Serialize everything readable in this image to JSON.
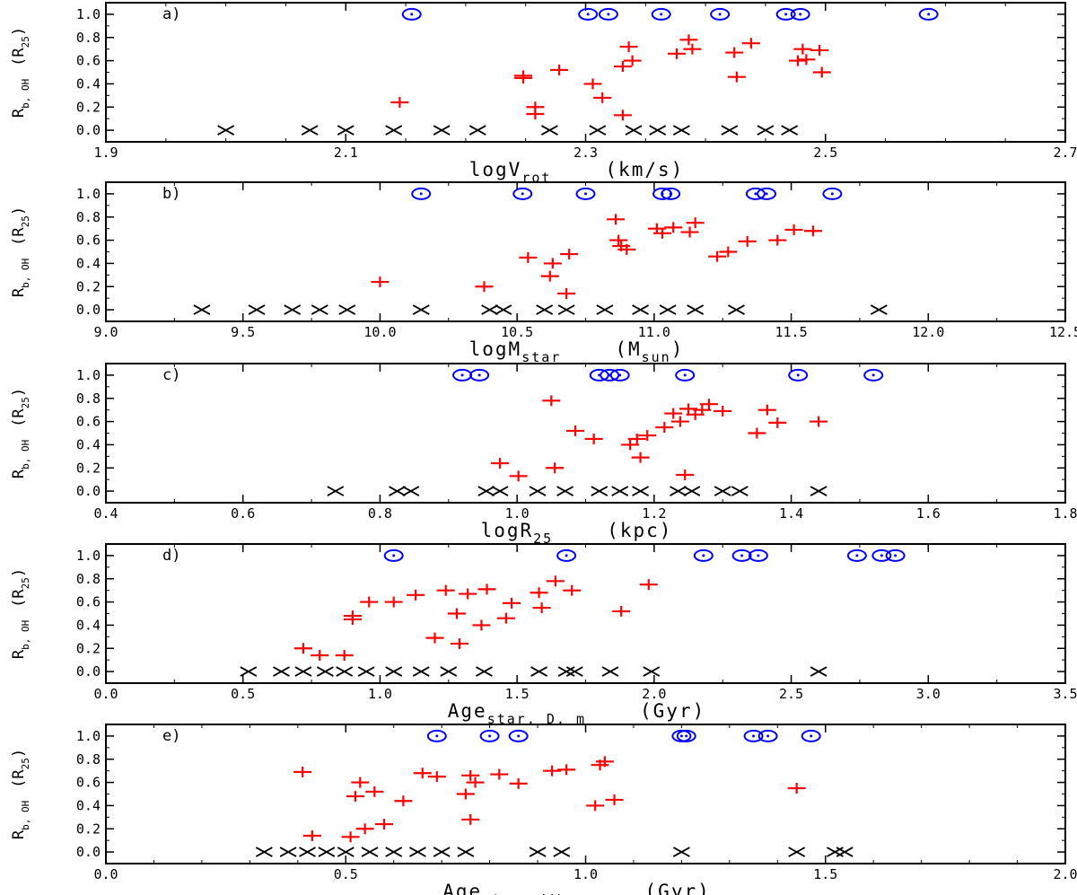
{
  "figure": {
    "y_label_main": "R",
    "y_label_sub": "b, OH",
    "y_label_unit_pre": "(R",
    "y_label_unit_sub": "25",
    "y_label_unit_post": ")"
  },
  "colors": {
    "upper": "#0000ff",
    "measured": "#ff0000",
    "none": "#000000"
  },
  "chart_data": [
    {
      "type": "scatter",
      "panel_label": "a)",
      "xlabel": {
        "main": "logV",
        "sub": "rot",
        "unit": "(km/s)"
      },
      "xlim": [
        1.9,
        2.7
      ],
      "xticks": [
        1.9,
        2.1,
        2.3,
        2.5,
        2.7
      ],
      "xtick_labels": [
        "1.9",
        "2.1",
        "2.3",
        "2.5",
        "2.7"
      ],
      "xminor": 0.05,
      "ylim": [
        -0.1,
        1.1
      ],
      "yticks": [
        0.0,
        0.2,
        0.4,
        0.6,
        0.8,
        1.0
      ],
      "ytick_labels": [
        "0.0",
        "0.2",
        "0.4",
        "0.6",
        "0.8",
        "1.0"
      ],
      "series": [
        {
          "name": "upper",
          "marker": "circle-dot",
          "x": [
            2.155,
            2.302,
            2.319,
            2.363,
            2.412,
            2.467,
            2.479,
            2.586
          ],
          "y": [
            1.0,
            1.0,
            1.0,
            1.0,
            1.0,
            1.0,
            1.0,
            1.0
          ]
        },
        {
          "name": "measured",
          "marker": "plus",
          "x": [
            2.145,
            2.248,
            2.248,
            2.258,
            2.258,
            2.278,
            2.306,
            2.314,
            2.331,
            2.331,
            2.336,
            2.339,
            2.376,
            2.386,
            2.389,
            2.424,
            2.426,
            2.438,
            2.477,
            2.481,
            2.484,
            2.495,
            2.497
          ],
          "y": [
            0.24,
            0.47,
            0.45,
            0.2,
            0.14,
            0.52,
            0.4,
            0.28,
            0.55,
            0.13,
            0.72,
            0.6,
            0.66,
            0.78,
            0.7,
            0.67,
            0.46,
            0.75,
            0.6,
            0.7,
            0.61,
            0.69,
            0.5
          ]
        },
        {
          "name": "none",
          "marker": "x",
          "x": [
            2.0,
            2.07,
            2.1,
            2.14,
            2.18,
            2.21,
            2.27,
            2.31,
            2.34,
            2.36,
            2.38,
            2.42,
            2.45,
            2.47
          ],
          "y": [
            0,
            0,
            0,
            0,
            0,
            0,
            0,
            0,
            0,
            0,
            0,
            0,
            0,
            0
          ]
        }
      ]
    },
    {
      "type": "scatter",
      "panel_label": "b)",
      "xlabel": {
        "main": "logM",
        "sub": "star",
        "unit": "(M",
        "unit_sub": "sun",
        "unit_post": ")"
      },
      "xlim": [
        9.0,
        12.5
      ],
      "xticks": [
        9.0,
        9.5,
        10.0,
        10.5,
        11.0,
        11.5,
        12.0,
        12.5
      ],
      "xtick_labels": [
        "9.0",
        "9.5",
        "10.0",
        "10.5",
        "11.0",
        "11.5",
        "12.0",
        "12.5"
      ],
      "xminor": 0.25,
      "ylim": [
        -0.1,
        1.1
      ],
      "yticks": [
        0.0,
        0.2,
        0.4,
        0.6,
        0.8,
        1.0
      ],
      "ytick_labels": [
        "0.0",
        "0.2",
        "0.4",
        "0.6",
        "0.8",
        "1.0"
      ],
      "series": [
        {
          "name": "upper",
          "marker": "circle-dot",
          "x": [
            10.15,
            10.52,
            10.75,
            11.03,
            11.06,
            11.37,
            11.41,
            11.65
          ],
          "y": [
            1.0,
            1.0,
            1.0,
            1.0,
            1.0,
            1.0,
            1.0,
            1.0
          ]
        },
        {
          "name": "measured",
          "marker": "plus",
          "x": [
            10.0,
            10.38,
            10.54,
            10.62,
            10.63,
            10.69,
            10.68,
            10.86,
            10.87,
            10.88,
            10.9,
            11.01,
            11.03,
            11.07,
            11.13,
            11.15,
            11.23,
            11.27,
            11.34,
            11.45,
            11.51,
            11.58
          ],
          "y": [
            0.24,
            0.2,
            0.45,
            0.29,
            0.4,
            0.48,
            0.14,
            0.78,
            0.6,
            0.55,
            0.52,
            0.7,
            0.66,
            0.71,
            0.67,
            0.75,
            0.46,
            0.5,
            0.59,
            0.6,
            0.69,
            0.68
          ]
        },
        {
          "name": "none",
          "marker": "x",
          "x": [
            9.35,
            9.55,
            9.68,
            9.78,
            9.88,
            10.15,
            10.4,
            10.45,
            10.6,
            10.68,
            10.82,
            10.95,
            11.05,
            11.15,
            11.3,
            11.82
          ],
          "y": [
            0,
            0,
            0,
            0,
            0,
            0,
            0,
            0,
            0,
            0,
            0,
            0,
            0,
            0,
            0,
            0
          ]
        }
      ]
    },
    {
      "type": "scatter",
      "panel_label": "c)",
      "xlabel": {
        "main": "logR",
        "sub": "25",
        "unit": "(kpc)"
      },
      "xlim": [
        0.4,
        1.8
      ],
      "xticks": [
        0.4,
        0.6,
        0.8,
        1.0,
        1.2,
        1.4,
        1.6,
        1.8
      ],
      "xtick_labels": [
        "0.4",
        "0.6",
        "0.8",
        "1.0",
        "1.2",
        "1.4",
        "1.6",
        "1.8"
      ],
      "xminor": 0.1,
      "ylim": [
        -0.1,
        1.1
      ],
      "yticks": [
        0.0,
        0.2,
        0.4,
        0.6,
        0.8,
        1.0
      ],
      "ytick_labels": [
        "0.0",
        "0.2",
        "0.4",
        "0.6",
        "0.8",
        "1.0"
      ],
      "series": [
        {
          "name": "upper",
          "marker": "circle-dot",
          "x": [
            0.92,
            0.945,
            1.12,
            1.135,
            1.15,
            1.245,
            1.41,
            1.52
          ],
          "y": [
            1.0,
            1.0,
            1.0,
            1.0,
            1.0,
            1.0,
            1.0,
            1.0
          ]
        },
        {
          "name": "measured",
          "marker": "plus",
          "x": [
            0.975,
            1.002,
            1.05,
            1.055,
            1.085,
            1.112,
            1.165,
            1.175,
            1.18,
            1.19,
            1.215,
            1.228,
            1.238,
            1.245,
            1.25,
            1.26,
            1.27,
            1.28,
            1.3,
            1.35,
            1.365,
            1.38,
            1.44
          ],
          "y": [
            0.24,
            0.13,
            0.78,
            0.2,
            0.52,
            0.45,
            0.4,
            0.45,
            0.29,
            0.48,
            0.55,
            0.67,
            0.6,
            0.14,
            0.71,
            0.66,
            0.7,
            0.75,
            0.69,
            0.5,
            0.7,
            0.59,
            0.6
          ]
        },
        {
          "name": "none",
          "marker": "x",
          "x": [
            0.735,
            0.825,
            0.845,
            0.955,
            0.975,
            1.03,
            1.07,
            1.12,
            1.15,
            1.18,
            1.235,
            1.255,
            1.3,
            1.325,
            1.44
          ],
          "y": [
            0,
            0,
            0,
            0,
            0,
            0,
            0,
            0,
            0,
            0,
            0,
            0,
            0,
            0,
            0
          ]
        }
      ]
    },
    {
      "type": "scatter",
      "panel_label": "d)",
      "xlabel": {
        "main": "Age",
        "sub": "star, D, m",
        "unit": "(Gyr)"
      },
      "xlim": [
        0.0,
        3.5
      ],
      "xticks": [
        0.0,
        0.5,
        1.0,
        1.5,
        2.0,
        2.5,
        3.0,
        3.5
      ],
      "xtick_labels": [
        "0.0",
        "0.5",
        "1.0",
        "1.5",
        "2.0",
        "2.5",
        "3.0",
        "3.5"
      ],
      "xminor": 0.25,
      "ylim": [
        -0.1,
        1.1
      ],
      "yticks": [
        0.0,
        0.2,
        0.4,
        0.6,
        0.8,
        1.0
      ],
      "ytick_labels": [
        "0.0",
        "0.2",
        "0.4",
        "0.6",
        "0.8",
        "1.0"
      ],
      "series": [
        {
          "name": "upper",
          "marker": "circle-dot",
          "x": [
            1.05,
            1.68,
            2.18,
            2.32,
            2.38,
            2.74,
            2.83,
            2.88
          ],
          "y": [
            1.0,
            1.0,
            1.0,
            1.0,
            1.0,
            1.0,
            1.0,
            1.0
          ]
        },
        {
          "name": "measured",
          "marker": "plus",
          "x": [
            0.72,
            0.78,
            0.87,
            0.9,
            0.9,
            0.96,
            1.05,
            1.13,
            1.2,
            1.24,
            1.28,
            1.29,
            1.32,
            1.37,
            1.39,
            1.46,
            1.48,
            1.58,
            1.59,
            1.64,
            1.7,
            1.88,
            1.98
          ],
          "y": [
            0.2,
            0.14,
            0.14,
            0.48,
            0.45,
            0.6,
            0.6,
            0.66,
            0.29,
            0.7,
            0.5,
            0.24,
            0.67,
            0.4,
            0.71,
            0.46,
            0.59,
            0.68,
            0.55,
            0.78,
            0.7,
            0.52,
            0.75
          ]
        },
        {
          "name": "none",
          "marker": "x",
          "x": [
            0.52,
            0.64,
            0.72,
            0.8,
            0.87,
            0.95,
            1.05,
            1.15,
            1.25,
            1.38,
            1.58,
            1.68,
            1.71,
            1.84,
            1.99,
            2.6
          ],
          "y": [
            0,
            0,
            0,
            0,
            0,
            0,
            0,
            0,
            0,
            0,
            0,
            0,
            0,
            0,
            0,
            0
          ]
        }
      ]
    },
    {
      "type": "scatter",
      "panel_label": "e)",
      "xlabel": {
        "main": "Age",
        "sub": "star, LW, m",
        "unit": "(Gyr)"
      },
      "xlim": [
        0.0,
        2.0
      ],
      "xticks": [
        0.0,
        0.5,
        1.0,
        1.5,
        2.0
      ],
      "xtick_labels": [
        "0.0",
        "0.5",
        "1.0",
        "1.5",
        "2.0"
      ],
      "xminor": 0.1,
      "ylim": [
        -0.1,
        1.1
      ],
      "yticks": [
        0.0,
        0.2,
        0.4,
        0.6,
        0.8,
        1.0
      ],
      "ytick_labels": [
        "0.0",
        "0.2",
        "0.4",
        "0.6",
        "0.8",
        "1.0"
      ],
      "series": [
        {
          "name": "upper",
          "marker": "circle-dot",
          "x": [
            0.69,
            0.8,
            0.86,
            1.2,
            1.21,
            1.35,
            1.38,
            1.47
          ],
          "y": [
            1.0,
            1.0,
            1.0,
            1.0,
            1.0,
            1.0,
            1.0,
            1.0
          ]
        },
        {
          "name": "measured",
          "marker": "plus",
          "x": [
            0.41,
            0.43,
            0.51,
            0.52,
            0.53,
            0.54,
            0.56,
            0.58,
            0.62,
            0.66,
            0.69,
            0.75,
            0.76,
            0.76,
            0.77,
            0.82,
            0.86,
            0.93,
            0.96,
            1.02,
            1.03,
            1.04,
            1.06,
            1.44
          ],
          "y": [
            0.69,
            0.14,
            0.13,
            0.48,
            0.6,
            0.2,
            0.52,
            0.24,
            0.44,
            0.68,
            0.65,
            0.5,
            0.28,
            0.66,
            0.6,
            0.67,
            0.59,
            0.7,
            0.71,
            0.4,
            0.75,
            0.78,
            0.45,
            0.55
          ]
        },
        {
          "name": "none",
          "marker": "x",
          "x": [
            0.33,
            0.38,
            0.42,
            0.46,
            0.5,
            0.55,
            0.6,
            0.65,
            0.7,
            0.75,
            0.9,
            0.95,
            1.2,
            1.44,
            1.52,
            1.54
          ],
          "y": [
            0,
            0,
            0,
            0,
            0,
            0,
            0,
            0,
            0,
            0,
            0,
            0,
            0,
            0,
            0,
            0
          ]
        }
      ]
    }
  ]
}
